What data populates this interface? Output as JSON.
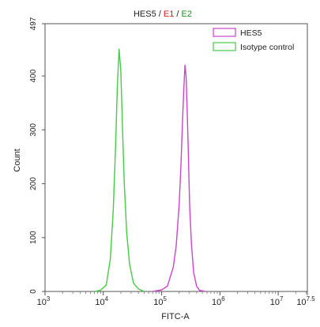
{
  "title_parts": [
    {
      "text": "HES5",
      "color": "#222222"
    },
    {
      "text": " / ",
      "color": "#222222"
    },
    {
      "text": "E1",
      "color": "#d62020"
    },
    {
      "text": " / ",
      "color": "#222222"
    },
    {
      "text": "E2",
      "color": "#1f8f1f"
    }
  ],
  "chart_data": {
    "type": "line",
    "title": "HES5 / E1 / E2",
    "xlabel": "FITC-A",
    "ylabel": "Count",
    "x_scale": "log",
    "xlim_log10": [
      3,
      7.5
    ],
    "ylim": [
      0,
      497
    ],
    "y_ticks": [
      0,
      100,
      200,
      300,
      400,
      497
    ],
    "y_tick_labels": [
      "0",
      "100",
      "200",
      "300",
      "400",
      "497"
    ],
    "x_ticks": [
      {
        "base": "10",
        "exp": "3"
      },
      {
        "base": "10",
        "exp": "4"
      },
      {
        "base": "10",
        "exp": "5"
      },
      {
        "base": "10",
        "exp": "6"
      },
      {
        "base": "10",
        "exp": "7"
      },
      {
        "base": "10",
        "exp": "7.5"
      }
    ],
    "legend_position": "top-right",
    "series": [
      {
        "name": "HES5",
        "color": "#cc44cc",
        "points": [
          [
            4.85,
            0
          ],
          [
            5.0,
            3
          ],
          [
            5.1,
            10
          ],
          [
            5.2,
            45
          ],
          [
            5.25,
            85
          ],
          [
            5.3,
            160
          ],
          [
            5.33,
            230
          ],
          [
            5.36,
            320
          ],
          [
            5.38,
            375
          ],
          [
            5.4,
            420
          ],
          [
            5.42,
            400
          ],
          [
            5.44,
            330
          ],
          [
            5.46,
            250
          ],
          [
            5.48,
            160
          ],
          [
            5.51,
            90
          ],
          [
            5.55,
            35
          ],
          [
            5.6,
            10
          ],
          [
            5.65,
            2
          ],
          [
            5.75,
            0
          ]
        ]
      },
      {
        "name": "Isotype control",
        "color": "#44cc44",
        "points": [
          [
            3.85,
            0
          ],
          [
            3.95,
            2
          ],
          [
            4.05,
            12
          ],
          [
            4.12,
            60
          ],
          [
            4.17,
            150
          ],
          [
            4.21,
            270
          ],
          [
            4.24,
            380
          ],
          [
            4.27,
            450
          ],
          [
            4.3,
            410
          ],
          [
            4.33,
            300
          ],
          [
            4.36,
            200
          ],
          [
            4.4,
            110
          ],
          [
            4.45,
            50
          ],
          [
            4.52,
            15
          ],
          [
            4.6,
            5
          ],
          [
            4.7,
            0
          ]
        ]
      }
    ]
  }
}
